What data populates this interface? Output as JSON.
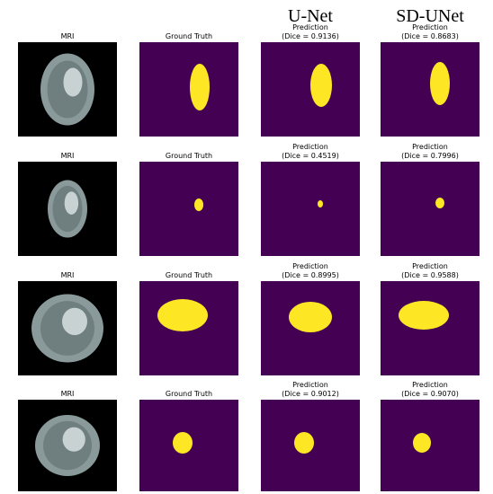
{
  "column_headers": [
    "U-Net",
    "SD-UNet"
  ],
  "rows": [
    {
      "panels": [
        {
          "title": "MRI"
        },
        {
          "title": "Ground Truth"
        },
        {
          "title": "Prediction",
          "dice": "(Dice = 0.9136)"
        },
        {
          "title": "Prediction",
          "dice": "(Dice = 0.8683)"
        }
      ]
    },
    {
      "panels": [
        {
          "title": "MRI"
        },
        {
          "title": "Ground Truth"
        },
        {
          "title": "Prediction",
          "dice": "(Dice = 0.4519)"
        },
        {
          "title": "Prediction",
          "dice": "(Dice = 0.7996)"
        }
      ]
    },
    {
      "panels": [
        {
          "title": "MRI"
        },
        {
          "title": "Ground Truth"
        },
        {
          "title": "Prediction",
          "dice": "(Dice = 0.8995)"
        },
        {
          "title": "Prediction",
          "dice": "(Dice = 0.9588)"
        }
      ]
    },
    {
      "panels": [
        {
          "title": "MRI"
        },
        {
          "title": "Ground Truth"
        },
        {
          "title": "Prediction",
          "dice": "(Dice = 0.9012)"
        },
        {
          "title": "Prediction",
          "dice": "(Dice = 0.9070)"
        }
      ]
    }
  ]
}
